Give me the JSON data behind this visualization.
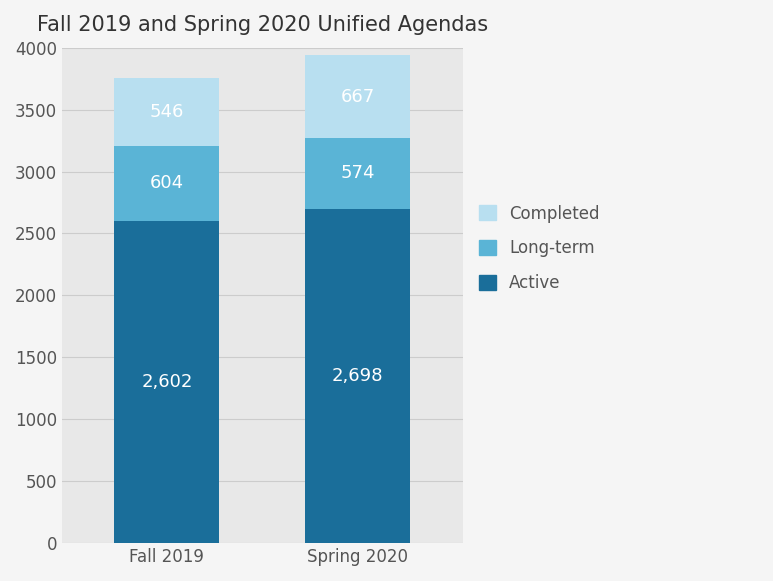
{
  "title": "Fall 2019 and Spring 2020 Unified Agendas",
  "categories": [
    "Fall 2019",
    "Spring 2020"
  ],
  "active": [
    2602,
    2698
  ],
  "longterm": [
    604,
    574
  ],
  "completed": [
    546,
    667
  ],
  "active_label": [
    "2,602",
    "2,698"
  ],
  "longterm_label": [
    "604",
    "574"
  ],
  "completed_label": [
    "546",
    "667"
  ],
  "color_active": "#1a6e9a",
  "color_longterm": "#5ab4d6",
  "color_completed": "#b8dff0",
  "legend_labels": [
    "Completed",
    "Long-term",
    "Active"
  ],
  "ylim": [
    0,
    4000
  ],
  "yticks": [
    0,
    500,
    1000,
    1500,
    2000,
    2500,
    3000,
    3500,
    4000
  ],
  "background_color": "#e8e8e8",
  "plot_background": "#e8e8e8",
  "title_fontsize": 15,
  "label_fontsize": 13,
  "tick_fontsize": 12,
  "legend_fontsize": 12,
  "bar_width": 0.55
}
